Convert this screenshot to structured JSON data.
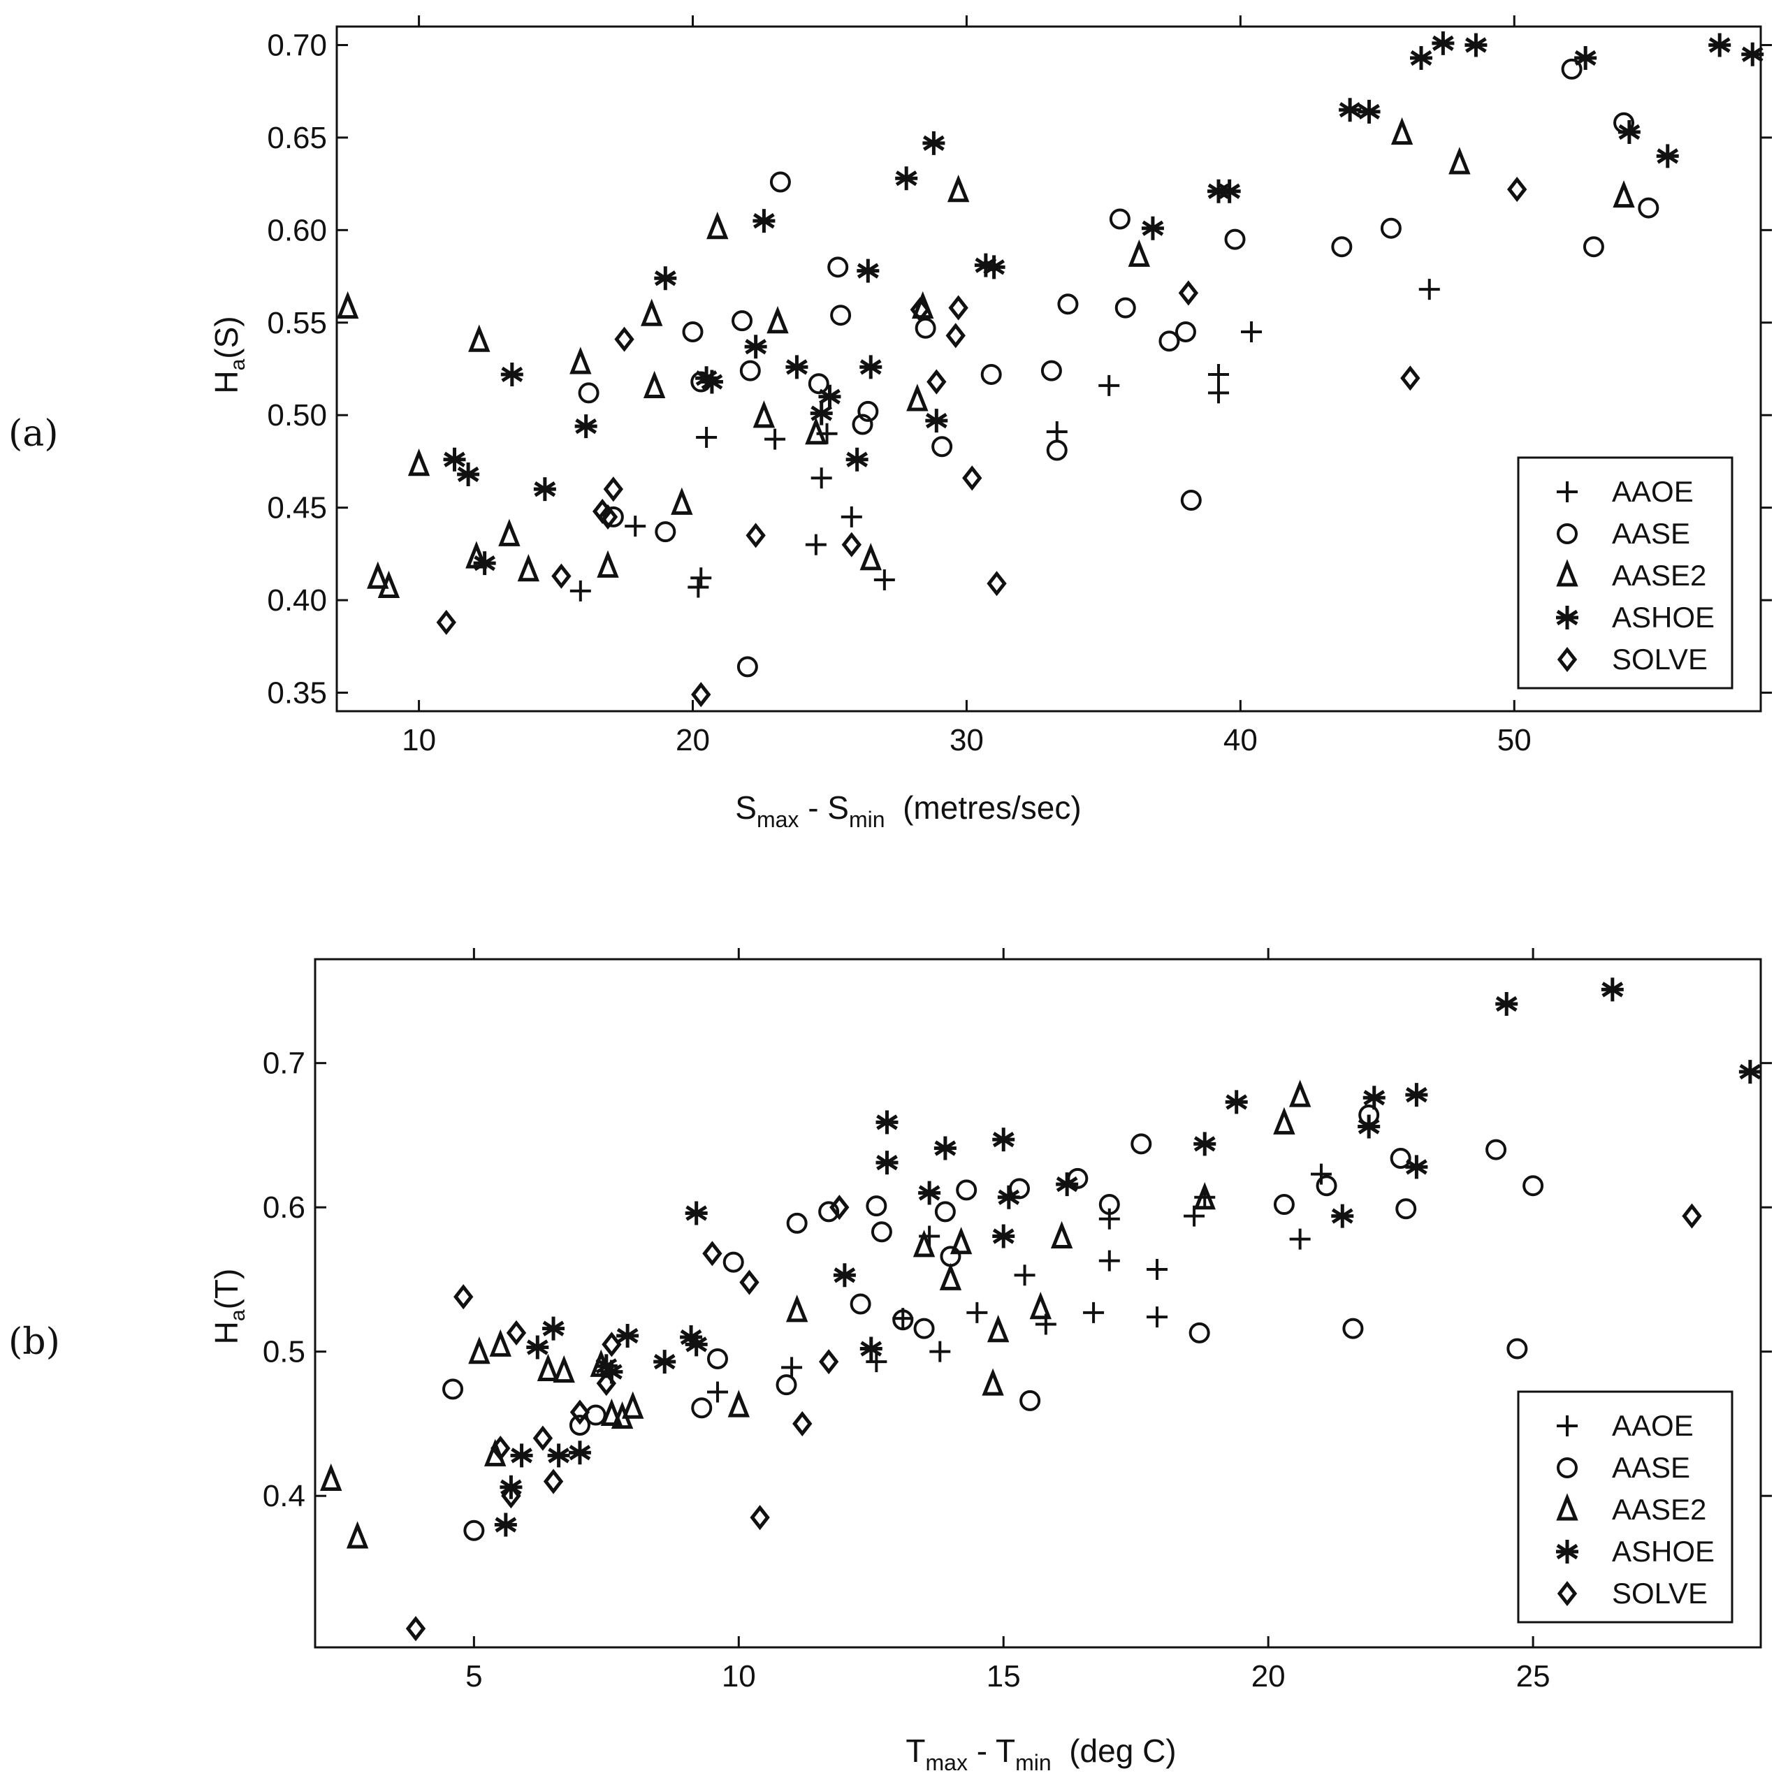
{
  "figure": {
    "background": "#ffffff",
    "ink": "#111111"
  },
  "chart_data": [
    {
      "type": "scatter",
      "panel_label": "(a)",
      "ylabel_main": "H",
      "ylabel_sub": "a",
      "ylabel_tail": "(S)",
      "xlabel_pre": "S",
      "xlabel_sub1": "max",
      "xlabel_mid": " - S",
      "xlabel_sub2": "min",
      "xlabel_tail": "  (metres/sec)",
      "xlim": [
        7,
        59
      ],
      "ylim": [
        0.34,
        0.71
      ],
      "xticks": [
        10,
        20,
        30,
        40,
        50
      ],
      "xtick_labels": [
        "10",
        "20",
        "30",
        "40",
        "50"
      ],
      "yticks": [
        0.35,
        0.4,
        0.45,
        0.5,
        0.55,
        0.6,
        0.65,
        0.7
      ],
      "ytick_labels": [
        "0.35",
        "0.40",
        "0.45",
        "0.50",
        "0.55",
        "0.60",
        "0.65",
        "0.70"
      ],
      "legend_position": "bottom-right",
      "series": [
        {
          "name": "AAOE",
          "marker": "plus",
          "x": [
            15.9,
            17.9,
            20.2,
            20.3,
            20.5,
            23,
            24.5,
            24.7,
            24.9,
            25.8,
            27,
            33.3,
            35.2,
            39.2,
            39.2,
            40.4,
            46.9
          ],
          "y": [
            0.405,
            0.44,
            0.407,
            0.412,
            0.488,
            0.487,
            0.43,
            0.466,
            0.49,
            0.445,
            0.411,
            0.491,
            0.516,
            0.522,
            0.512,
            0.545,
            0.568
          ]
        },
        {
          "name": "AASE",
          "marker": "circle",
          "x": [
            16.2,
            17.1,
            19,
            20,
            20.3,
            21.8,
            22,
            22.1,
            23.2,
            24.6,
            25.3,
            25.4,
            26.2,
            26.4,
            28.5,
            29.1,
            30.9,
            33.1,
            33.3,
            33.7,
            35.6,
            35.8,
            37.4,
            38,
            38.2,
            39.8,
            43.7,
            45.5,
            52.1,
            52.9,
            54,
            54.9
          ],
          "y": [
            0.512,
            0.445,
            0.437,
            0.545,
            0.518,
            0.551,
            0.364,
            0.524,
            0.626,
            0.517,
            0.58,
            0.554,
            0.495,
            0.502,
            0.547,
            0.483,
            0.522,
            0.524,
            0.481,
            0.56,
            0.606,
            0.558,
            0.54,
            0.545,
            0.454,
            0.595,
            0.591,
            0.601,
            0.687,
            0.591,
            0.658,
            0.612
          ]
        },
        {
          "name": "AASE2",
          "marker": "triangle",
          "x": [
            7.4,
            8.5,
            8.9,
            10,
            12.1,
            12.2,
            13.3,
            14,
            15.9,
            16.9,
            18.5,
            18.6,
            19.6,
            20.9,
            22.6,
            23.1,
            24.5,
            26.5,
            28.2,
            28.4,
            29.7,
            36.3,
            45.9,
            48,
            54
          ],
          "y": [
            0.558,
            0.412,
            0.407,
            0.473,
            0.423,
            0.54,
            0.435,
            0.416,
            0.528,
            0.418,
            0.554,
            0.515,
            0.452,
            0.601,
            0.499,
            0.55,
            0.49,
            0.422,
            0.508,
            0.558,
            0.621,
            0.586,
            0.652,
            0.636,
            0.618
          ]
        },
        {
          "name": "ASHOE",
          "marker": "asterisk",
          "x": [
            11.3,
            11.8,
            12.4,
            13.4,
            14.6,
            16.1,
            19,
            20.5,
            20.7,
            22.3,
            22.6,
            23.8,
            24.7,
            25,
            26,
            26.4,
            26.5,
            27.8,
            28.8,
            28.9,
            30.7,
            31,
            36.8,
            39.2,
            39.6,
            44,
            44.7,
            46.6,
            47.4,
            48.6,
            52.6,
            54.2,
            55.6,
            57.5,
            58.7
          ],
          "y": [
            0.476,
            0.468,
            0.42,
            0.522,
            0.46,
            0.494,
            0.574,
            0.52,
            0.518,
            0.537,
            0.605,
            0.526,
            0.501,
            0.51,
            0.476,
            0.578,
            0.526,
            0.628,
            0.647,
            0.497,
            0.581,
            0.58,
            0.601,
            0.621,
            0.621,
            0.665,
            0.664,
            0.693,
            0.701,
            0.7,
            0.693,
            0.653,
            0.64,
            0.7,
            0.695
          ]
        },
        {
          "name": "SOLVE",
          "marker": "diamond",
          "x": [
            11,
            15.2,
            16.7,
            16.9,
            17.1,
            17.5,
            20.3,
            22.3,
            25.8,
            28.3,
            28.9,
            29.6,
            29.7,
            30.2,
            31.1,
            38.1,
            46.2,
            50.1
          ],
          "y": [
            0.388,
            0.413,
            0.448,
            0.445,
            0.46,
            0.541,
            0.349,
            0.435,
            0.43,
            0.557,
            0.518,
            0.543,
            0.558,
            0.466,
            0.409,
            0.566,
            0.52,
            0.622
          ]
        }
      ]
    },
    {
      "type": "scatter",
      "panel_label": "(b)",
      "ylabel_main": "H",
      "ylabel_sub": "a",
      "ylabel_tail": "(T)",
      "xlabel_pre": "T",
      "xlabel_sub1": "max",
      "xlabel_mid": " - T",
      "xlabel_sub2": "min",
      "xlabel_tail": "  (deg C)",
      "xlim": [
        2,
        29.3
      ],
      "ylim": [
        0.295,
        0.772
      ],
      "xticks": [
        5,
        10,
        15,
        20,
        25
      ],
      "xtick_labels": [
        "5",
        "10",
        "15",
        "20",
        "25"
      ],
      "yticks": [
        0.4,
        0.5,
        0.6,
        0.7
      ],
      "ytick_labels": [
        "0.4",
        "0.5",
        "0.6",
        "0.7"
      ],
      "legend_position": "bottom-right",
      "series": [
        {
          "name": "AAOE",
          "marker": "plus",
          "x": [
            9.6,
            11,
            12.6,
            13.1,
            13.6,
            13.8,
            14.5,
            15.4,
            15.8,
            16.7,
            17,
            17,
            17.9,
            17.9,
            18.6,
            18.8,
            20.6,
            21
          ],
          "y": [
            0.472,
            0.489,
            0.493,
            0.523,
            0.58,
            0.5,
            0.527,
            0.553,
            0.519,
            0.527,
            0.592,
            0.563,
            0.557,
            0.524,
            0.594,
            0.607,
            0.578,
            0.623
          ]
        },
        {
          "name": "AASE",
          "marker": "circle",
          "x": [
            4.6,
            5,
            7,
            7.3,
            9.3,
            9.6,
            9.9,
            10.9,
            11.1,
            11.7,
            12.3,
            12.6,
            12.7,
            13.1,
            13.5,
            13.9,
            14,
            14.3,
            15.3,
            15.5,
            16.4,
            17,
            17.6,
            18.7,
            20.3,
            21.1,
            21.6,
            21.9,
            22.5,
            22.6,
            24.3,
            24.7,
            25
          ],
          "y": [
            0.474,
            0.376,
            0.449,
            0.456,
            0.461,
            0.495,
            0.562,
            0.477,
            0.589,
            0.597,
            0.533,
            0.601,
            0.583,
            0.522,
            0.516,
            0.597,
            0.566,
            0.612,
            0.613,
            0.466,
            0.62,
            0.602,
            0.644,
            0.513,
            0.602,
            0.615,
            0.516,
            0.664,
            0.634,
            0.599,
            0.64,
            0.502,
            0.615
          ]
        },
        {
          "name": "AASE2",
          "marker": "triangle",
          "x": [
            2.3,
            2.8,
            5.1,
            5.4,
            5.5,
            6.4,
            6.7,
            7.4,
            7.6,
            7.8,
            8,
            10,
            11.1,
            13.5,
            14,
            14.2,
            14.8,
            14.9,
            15.7,
            16.1,
            18.8,
            20.3,
            20.6
          ],
          "y": [
            0.411,
            0.371,
            0.499,
            0.428,
            0.504,
            0.487,
            0.486,
            0.49,
            0.456,
            0.454,
            0.461,
            0.462,
            0.528,
            0.573,
            0.55,
            0.575,
            0.477,
            0.514,
            0.53,
            0.579,
            0.606,
            0.658,
            0.677
          ]
        },
        {
          "name": "ASHOE",
          "marker": "asterisk",
          "x": [
            5.6,
            5.7,
            5.9,
            6.2,
            6.5,
            6.6,
            7,
            7.5,
            7.6,
            7.9,
            8.6,
            9.2,
            9.1,
            9.2,
            12,
            12.5,
            12.8,
            12.8,
            13.6,
            13.9,
            15,
            15,
            15.1,
            16.2,
            18.8,
            19.4,
            21.4,
            21.9,
            22,
            22.8,
            22.8,
            24.5,
            26.5,
            29.1
          ],
          "y": [
            0.38,
            0.406,
            0.428,
            0.503,
            0.516,
            0.428,
            0.43,
            0.49,
            0.486,
            0.511,
            0.493,
            0.505,
            0.51,
            0.596,
            0.553,
            0.502,
            0.631,
            0.659,
            0.61,
            0.641,
            0.58,
            0.647,
            0.607,
            0.616,
            0.644,
            0.673,
            0.594,
            0.656,
            0.676,
            0.628,
            0.678,
            0.741,
            0.751,
            0.694
          ]
        },
        {
          "name": "SOLVE",
          "marker": "diamond",
          "x": [
            3.9,
            4.8,
            5.5,
            5.7,
            5.8,
            6.3,
            6.5,
            7,
            7.5,
            7.6,
            9.5,
            10.2,
            10.4,
            11.2,
            11.7,
            11.9,
            28
          ],
          "y": [
            0.308,
            0.538,
            0.433,
            0.4,
            0.513,
            0.44,
            0.41,
            0.458,
            0.478,
            0.505,
            0.568,
            0.548,
            0.385,
            0.45,
            0.493,
            0.6,
            0.594
          ]
        }
      ]
    }
  ]
}
